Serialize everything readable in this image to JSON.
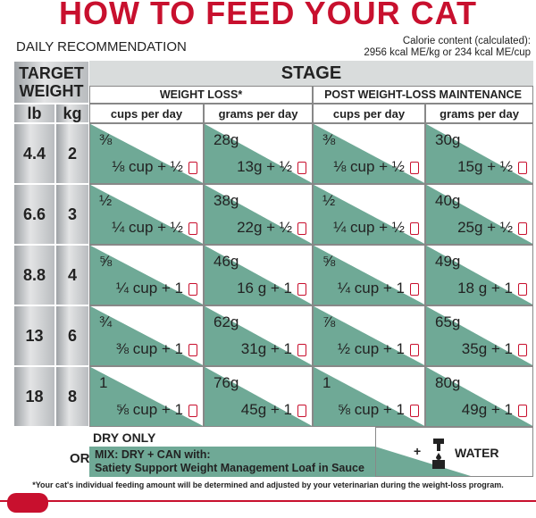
{
  "title": "HOW TO FEED YOUR CAT",
  "subtitle": "DAILY RECOMMENDATION",
  "calorie": [
    "Calorie content (calculated):",
    "2956 kcal ME/kg or 234 kcal ME/cup"
  ],
  "table": {
    "target_weight": [
      "TARGET",
      "WEIGHT"
    ],
    "lb": "lb",
    "kg": "kg",
    "stage": "STAGE",
    "groups": [
      "WEIGHT LOSS*",
      "POST WEIGHT-LOSS MAINTENANCE"
    ],
    "units": [
      "cups per day",
      "grams per day",
      "cups per day",
      "grams per day"
    ],
    "rows": [
      {
        "lb": "4.4",
        "kg": "2",
        "cells": [
          [
            "⅜",
            "⅛ cup + ½"
          ],
          [
            "28g",
            "13g + ½"
          ],
          [
            "⅜",
            "⅛ cup + ½"
          ],
          [
            "30g",
            "15g + ½"
          ]
        ]
      },
      {
        "lb": "6.6",
        "kg": "3",
        "cells": [
          [
            "½",
            "¼ cup + ½"
          ],
          [
            "38g",
            "22g + ½"
          ],
          [
            "½",
            "¼ cup + ½"
          ],
          [
            "40g",
            "25g + ½"
          ]
        ]
      },
      {
        "lb": "8.8",
        "kg": "4",
        "cells": [
          [
            "⅝",
            "¼ cup + 1"
          ],
          [
            "46g",
            "16 g + 1"
          ],
          [
            "⅝",
            "¼ cup + 1"
          ],
          [
            "49g",
            "18 g + 1"
          ]
        ]
      },
      {
        "lb": "13",
        "kg": "6",
        "cells": [
          [
            "¾",
            "⅜ cup + 1"
          ],
          [
            "62g",
            "31g + 1"
          ],
          [
            "⅞",
            "½ cup + 1"
          ],
          [
            "65g",
            "35g + 1"
          ]
        ]
      },
      {
        "lb": "18",
        "kg": "8",
        "cells": [
          [
            "1",
            "⅝ cup + 1"
          ],
          [
            "76g",
            "45g + 1"
          ],
          [
            "1",
            "⅝ cup + 1"
          ],
          [
            "80g",
            "49g + 1"
          ]
        ]
      }
    ]
  },
  "legend": {
    "dry": "DRY ONLY",
    "or": "OR",
    "mix": "MIX: DRY + CAN with:",
    "product": "Satiety Support Weight Management Loaf in Sauce",
    "water": "WATER"
  },
  "footnote": "*Your cat's individual feeding amount will be determined and adjusted by your veterinarian during the weight-loss program."
}
